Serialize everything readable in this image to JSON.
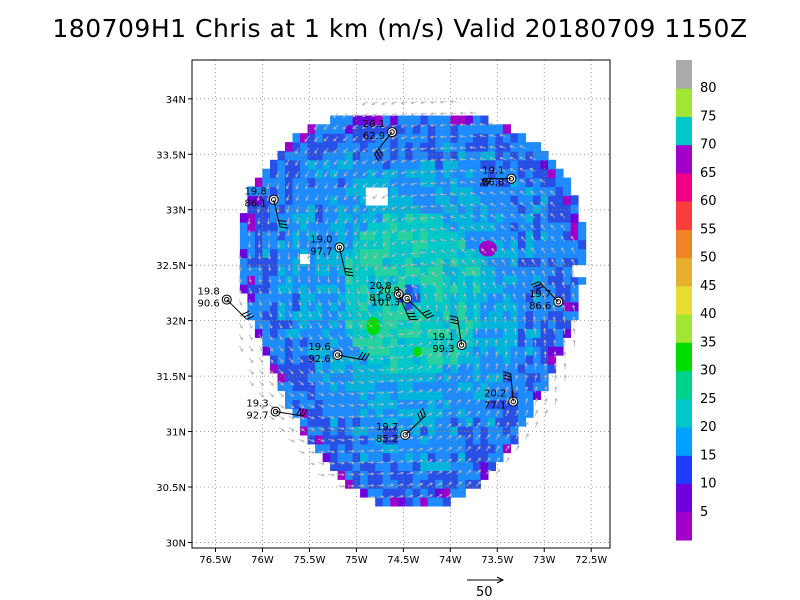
{
  "title": "180709H1 Chris at 1 km (m/s) Valid 20180709 1150Z",
  "map": {
    "lon_range": [
      -76.75,
      -72.3
    ],
    "lat_range": [
      29.95,
      34.35
    ],
    "lon_ticks": [
      -76.5,
      -76,
      -75.5,
      -75,
      -74.5,
      -74,
      -73.5,
      -73,
      -72.5
    ],
    "lon_tick_labels": [
      "76.5W",
      "76W",
      "75.5W",
      "75W",
      "74.5W",
      "74W",
      "73.5W",
      "73W",
      "72.5W"
    ],
    "lat_ticks": [
      30,
      30.5,
      31,
      31.5,
      32,
      32.5,
      33,
      33.5,
      34
    ],
    "lat_tick_labels": [
      "30N",
      "30.5N",
      "31N",
      "31.5N",
      "32N",
      "32.5N",
      "33N",
      "33.5N",
      "34N"
    ],
    "grid": "dotted",
    "storm_center": {
      "lon": -74.45,
      "lat": 32.2
    },
    "coverage_radius_deg": 1.95
  },
  "colorbar": {
    "levels": [
      5,
      10,
      15,
      20,
      25,
      30,
      35,
      40,
      45,
      50,
      55,
      60,
      65,
      70,
      75,
      80
    ],
    "colors": [
      "#a000c8",
      "#6e00dc",
      "#1e3cff",
      "#00a0ff",
      "#00c8c8",
      "#00d28c",
      "#00dc00",
      "#a0e632",
      "#e6dc32",
      "#e6af2d",
      "#f08228",
      "#fa3c3c",
      "#f00082",
      "#a000c8",
      "#00c8c8",
      "#a0e632",
      "#aaaaaa"
    ],
    "labels": [
      "5",
      "10",
      "15",
      "20",
      "25",
      "30",
      "35",
      "40",
      "45",
      "50",
      "55",
      "60",
      "65",
      "70",
      "75",
      "80"
    ]
  },
  "wind_colors": {
    "background_colors": [
      "#2850e6",
      "#1e8cff",
      "#00b4dc",
      "#00c8c8",
      "#28d2a0",
      "#00dc00",
      "#a000c8",
      "#6e00dc"
    ]
  },
  "vector_scale": {
    "label": "50"
  },
  "dropsondes": [
    {
      "lon": -74.62,
      "lat": 33.7,
      "top": "20.1",
      "bottom": "62.9"
    },
    {
      "lon": -73.35,
      "lat": 33.28,
      "top": "19.1",
      "bottom": "86.8"
    },
    {
      "lon": -75.88,
      "lat": 33.09,
      "top": "19.8",
      "bottom": "86.1"
    },
    {
      "lon": -75.18,
      "lat": 32.66,
      "top": "19.0",
      "bottom": "97.7"
    },
    {
      "lon": -76.38,
      "lat": 32.19,
      "top": "19.8",
      "bottom": "90.6"
    },
    {
      "lon": -74.55,
      "lat": 32.24,
      "top": "20.8",
      "bottom": "81.9"
    },
    {
      "lon": -74.46,
      "lat": 32.2,
      "top": "20.9",
      "bottom": "101.3"
    },
    {
      "lon": -72.85,
      "lat": 32.17,
      "top": "19.7",
      "bottom": "86.6"
    },
    {
      "lon": -73.88,
      "lat": 31.78,
      "top": "19.1",
      "bottom": "99.3"
    },
    {
      "lon": -75.2,
      "lat": 31.69,
      "top": "19.6",
      "bottom": "92.6"
    },
    {
      "lon": -75.86,
      "lat": 31.18,
      "top": "19.3",
      "bottom": "92.7"
    },
    {
      "lon": -73.33,
      "lat": 31.27,
      "top": "20.2",
      "bottom": "77.1"
    },
    {
      "lon": -74.48,
      "lat": 30.97,
      "top": "19.7",
      "bottom": "85.2"
    }
  ]
}
